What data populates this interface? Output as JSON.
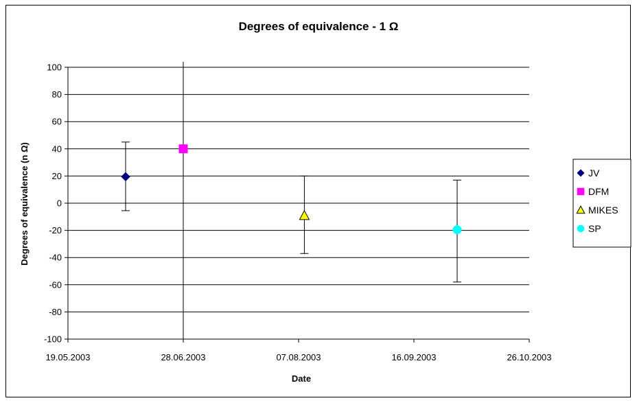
{
  "chart_data": {
    "type": "scatter",
    "title": "Degrees of equivalence - 1 Ω",
    "xlabel": "Date",
    "ylabel": "Degrees of equivalence (n Ω)",
    "x_ticks": [
      "19.05.2003",
      "28.06.2003",
      "07.08.2003",
      "16.09.2003",
      "26.10.2003"
    ],
    "xlim": [
      "2003-05-19",
      "2003-10-26"
    ],
    "y_ticks": [
      100,
      80,
      60,
      40,
      20,
      0,
      -20,
      -40,
      -60,
      -80,
      -100
    ],
    "ylim": [
      -100,
      100
    ],
    "grid": "horizontal",
    "legend": "right",
    "vertical_reference_line": "2003-06-28",
    "series": [
      {
        "name": "JV",
        "marker": "diamond",
        "color": "#000080",
        "x": "2003-06-08",
        "y": 19.5,
        "err_low": -5.5,
        "err_high": 45
      },
      {
        "name": "DFM",
        "marker": "square",
        "color": "#ff00ff",
        "x": "2003-06-28",
        "y": 40,
        "err_low": null,
        "err_high": null
      },
      {
        "name": "MIKES",
        "marker": "triangle",
        "color": "#ffff00",
        "x": "2003-08-09",
        "y": -9,
        "err_low": -37,
        "err_high": 20
      },
      {
        "name": "SP",
        "marker": "circle",
        "color": "#00ffff",
        "x": "2003-10-01",
        "y": -19.5,
        "err_low": -58,
        "err_high": 17
      }
    ]
  }
}
